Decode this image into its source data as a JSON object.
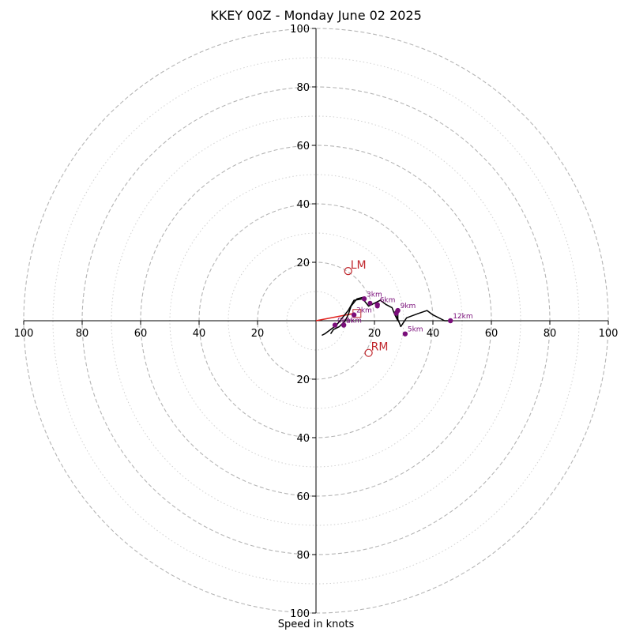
{
  "chart_data": {
    "type": "hodograph",
    "title": "KKEY 00Z - Monday June 02 2025",
    "xlabel": "Speed in knots",
    "ylabel": "",
    "range": 100,
    "major_rings": [
      20,
      40,
      60,
      80,
      100
    ],
    "minor_rings": [
      10,
      30,
      50,
      70,
      90
    ],
    "tick_labels": {
      "top": [
        "20",
        "40",
        "60",
        "80",
        "100"
      ],
      "bottom": [
        "20",
        "40",
        "60",
        "80",
        "100"
      ],
      "left": [
        "20",
        "40",
        "60",
        "80",
        "100"
      ],
      "right": [
        "20",
        "40",
        "60",
        "80",
        "100"
      ]
    },
    "hodograph_line": [
      [
        2,
        -5
      ],
      [
        3,
        -4.5
      ],
      [
        5,
        -3
      ],
      [
        7,
        -1.5
      ],
      [
        9,
        1
      ],
      [
        11,
        3.5
      ],
      [
        13,
        7
      ],
      [
        16,
        7.5
      ],
      [
        18,
        5
      ],
      [
        20,
        6
      ],
      [
        22,
        7
      ],
      [
        24,
        5.5
      ],
      [
        26,
        4.5
      ],
      [
        27,
        2
      ],
      [
        28,
        0
      ],
      [
        27,
        3
      ],
      [
        28,
        4
      ],
      [
        28,
        0.5
      ],
      [
        29,
        -2
      ],
      [
        31,
        1
      ],
      [
        35,
        2.5
      ],
      [
        38,
        3.5
      ],
      [
        40,
        2
      ],
      [
        44,
        0
      ],
      [
        46,
        0
      ]
    ],
    "secondary_line": [
      [
        5,
        -4.5
      ],
      [
        6,
        -3
      ],
      [
        8,
        -2
      ],
      [
        10,
        0
      ],
      [
        11,
        2
      ],
      [
        12,
        5
      ],
      [
        14,
        7.5
      ],
      [
        16,
        8
      ]
    ],
    "height_markers": [
      {
        "label": "0km",
        "u": 6.5,
        "v": -1.5
      },
      {
        "label": "1km",
        "u": 9.5,
        "v": -1.5
      },
      {
        "label": "2km",
        "u": 13,
        "v": 2
      },
      {
        "label": "3km",
        "u": 16.5,
        "v": 7.5
      },
      {
        "label": "6km",
        "u": 21,
        "v": 5.5
      },
      {
        "label": "9km",
        "u": 28,
        "v": 3.5
      },
      {
        "label": "5km",
        "u": 30.5,
        "v": -4.5
      },
      {
        "label": "12km",
        "u": 46,
        "v": 0
      }
    ],
    "extra_markers": [
      {
        "u": 18.5,
        "v": 6
      },
      {
        "u": 21,
        "v": 5
      },
      {
        "u": 27.5,
        "v": 2.5
      }
    ],
    "storm_motion": [
      {
        "label": "LM",
        "u": 11,
        "v": 17
      },
      {
        "label": "RM",
        "u": 18,
        "v": -11
      }
    ],
    "mean_wind_box": {
      "u": 14,
      "v": 2.5
    },
    "shear_vector": {
      "from": [
        0,
        0
      ],
      "to": [
        13,
        2.5
      ]
    },
    "colors": {
      "hodograph": "#000000",
      "markers": "#7a0e7a",
      "storm_motion": "#c0262c",
      "shear_vector": "#e0201c",
      "grid": "#b5b5b5"
    }
  }
}
